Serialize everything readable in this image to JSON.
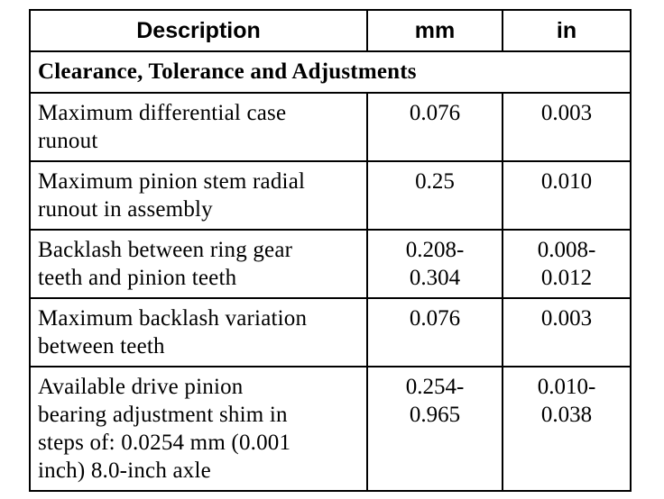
{
  "header": {
    "description": "Description",
    "mm": "mm",
    "in": "in"
  },
  "section_title": "Clearance, Tolerance and Adjustments",
  "rows": [
    {
      "desc": [
        "Maximum differential case",
        "runout"
      ],
      "mm": [
        "0.076"
      ],
      "in": [
        "0.003"
      ]
    },
    {
      "desc": [
        "Maximum pinion stem radial",
        "runout in assembly"
      ],
      "mm": [
        "0.25"
      ],
      "in": [
        "0.010"
      ]
    },
    {
      "desc": [
        "Backlash between ring gear",
        "teeth and pinion teeth"
      ],
      "mm": [
        "0.208-",
        "0.304"
      ],
      "in": [
        "0.008-",
        "0.012"
      ]
    },
    {
      "desc": [
        "Maximum backlash variation",
        "between teeth"
      ],
      "mm": [
        "0.076"
      ],
      "in": [
        "0.003"
      ]
    },
    {
      "desc": [
        "Available drive pinion",
        "bearing adjustment shim in",
        "steps of: 0.0254 mm (0.001",
        "inch) 8.0-inch axle"
      ],
      "mm": [
        "0.254-",
        "0.965"
      ],
      "in": [
        "0.010-",
        "0.038"
      ]
    }
  ]
}
